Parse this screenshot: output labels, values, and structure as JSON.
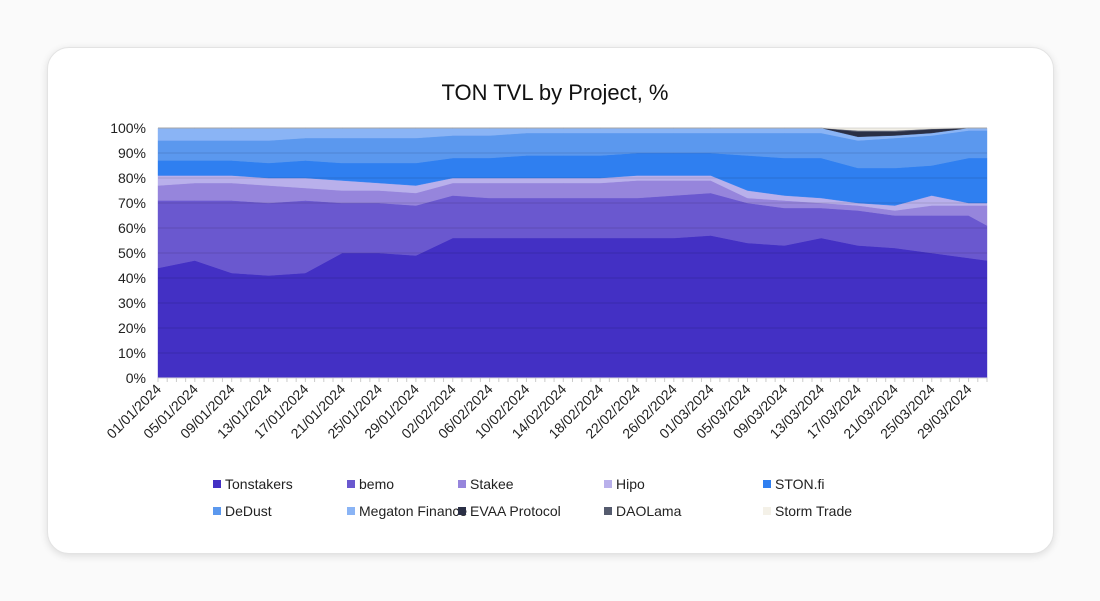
{
  "chart_data": {
    "type": "area",
    "stacked": "percent",
    "title": "TON TVL by Project, %",
    "xlabel": "",
    "ylabel": "",
    "ylim": [
      0,
      100
    ],
    "y_ticks": [
      "0%",
      "10%",
      "20%",
      "30%",
      "40%",
      "50%",
      "60%",
      "70%",
      "80%",
      "90%",
      "100%"
    ],
    "grid": true,
    "legend_position": "bottom",
    "x_tick_labels": [
      "01/01/2024",
      "05/01/2024",
      "09/01/2024",
      "13/01/2024",
      "17/01/2024",
      "21/01/2024",
      "25/01/2024",
      "29/01/2024",
      "02/02/2024",
      "06/02/2024",
      "10/02/2024",
      "14/02/2024",
      "18/02/2024",
      "22/02/2024",
      "26/02/2024",
      "01/03/2024",
      "05/03/2024",
      "09/03/2024",
      "13/03/2024",
      "17/03/2024",
      "21/03/2024",
      "25/03/2024",
      "29/03/2024"
    ],
    "x": [
      "01/01/2024",
      "05/01/2024",
      "09/01/2024",
      "13/01/2024",
      "17/01/2024",
      "21/01/2024",
      "25/01/2024",
      "29/01/2024",
      "02/02/2024",
      "06/02/2024",
      "10/02/2024",
      "14/02/2024",
      "18/02/2024",
      "22/02/2024",
      "26/02/2024",
      "01/03/2024",
      "05/03/2024",
      "09/03/2024",
      "13/03/2024",
      "17/03/2024",
      "21/03/2024",
      "25/03/2024",
      "29/03/2024",
      "31/03/2024"
    ],
    "series": [
      {
        "name": "Tonstakers",
        "color": "#4330c4",
        "values": [
          44,
          47,
          42,
          41,
          42,
          50,
          50,
          49,
          56,
          56,
          56,
          56,
          56,
          56,
          56,
          57,
          54,
          53,
          56,
          53,
          52,
          50,
          48,
          47
        ]
      },
      {
        "name": "bemo",
        "color": "#6a58cf",
        "values": [
          27,
          24,
          29,
          29,
          29,
          20,
          20,
          20,
          17,
          16,
          16,
          16,
          16,
          16,
          17,
          17,
          16,
          15,
          12,
          14,
          13,
          15,
          17,
          14
        ]
      },
      {
        "name": "Stakee",
        "color": "#9685dc",
        "values": [
          6,
          7,
          7,
          7,
          5,
          5,
          5,
          5,
          5,
          6,
          6,
          6,
          6,
          7,
          6,
          5,
          2,
          3,
          2,
          2,
          2,
          4,
          4,
          8
        ]
      },
      {
        "name": "Hipo",
        "color": "#b9b0eb",
        "values": [
          4,
          3,
          3,
          3,
          4,
          4,
          3,
          3,
          2,
          2,
          2,
          2,
          2,
          2,
          2,
          2,
          3,
          2,
          2,
          1,
          2,
          4,
          1,
          1
        ]
      },
      {
        "name": "STON.fi",
        "color": "#2f7ff0",
        "values": [
          6,
          6,
          6,
          6,
          7,
          7,
          8,
          9,
          8,
          8,
          9,
          9,
          9,
          9,
          9,
          9,
          14,
          15,
          16,
          14,
          15,
          12,
          18,
          18
        ]
      },
      {
        "name": "DeDust",
        "color": "#5b98ee",
        "values": [
          8,
          8,
          8,
          9,
          9,
          10,
          10,
          10,
          9,
          9,
          9,
          9,
          9,
          8,
          8,
          8,
          9,
          10,
          10,
          11,
          12,
          12,
          11,
          11
        ]
      },
      {
        "name": "Megaton Finance",
        "color": "#8ab4f5",
        "values": [
          5,
          5,
          5,
          5,
          4,
          4,
          4,
          4,
          3,
          3,
          2,
          2,
          2,
          2,
          2,
          2,
          2,
          2,
          2,
          1.5,
          1,
          1,
          1,
          1
        ]
      },
      {
        "name": "EVAA Protocol",
        "color": "#2a2f45",
        "values": [
          0,
          0,
          0,
          0,
          0,
          0,
          0,
          0,
          0,
          0,
          0,
          0,
          0,
          0,
          0,
          0,
          0,
          0,
          0,
          2,
          1.5,
          1.5,
          0,
          0
        ]
      },
      {
        "name": "DAOLama",
        "color": "#555b6e",
        "values": [
          0,
          0,
          0,
          0,
          0,
          0,
          0,
          0,
          0,
          0,
          0,
          0,
          0,
          0,
          0,
          0,
          0,
          0,
          0,
          0.5,
          0.5,
          0.2,
          0,
          0
        ]
      },
      {
        "name": "Storm Trade",
        "color": "#f4f1e8",
        "values": [
          0,
          0,
          0,
          0,
          0,
          0,
          0,
          0,
          0,
          0,
          0,
          0,
          0,
          0,
          0,
          0,
          0,
          0,
          0,
          1,
          1,
          0.3,
          0,
          0
        ]
      }
    ]
  }
}
